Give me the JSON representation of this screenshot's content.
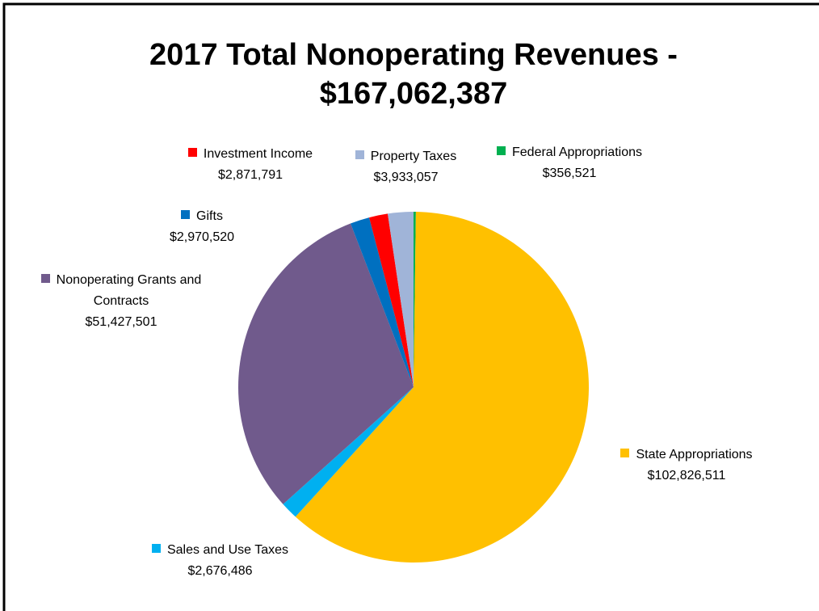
{
  "chart_data": {
    "type": "pie",
    "title": [
      "2017 Total Nonoperating Revenues -",
      "$167,062,387"
    ],
    "categories": [
      "Federal Appropriations",
      "State Appropriations",
      "Sales and Use Taxes",
      "Nonoperating Grants and Contracts",
      "Gifts",
      "Investment Income",
      "Property Taxes"
    ],
    "values": [
      356521,
      102826511,
      2676486,
      51427501,
      2970520,
      2871791,
      3933057
    ],
    "value_labels": [
      "$356,521",
      "$102,826,511",
      "$2,676,486",
      "$51,427,501",
      "$2,970,520",
      "$2,871,791",
      "$3,933,057"
    ],
    "colors": [
      "#00b050",
      "#ffc000",
      "#00b0f0",
      "#705a8c",
      "#0070c0",
      "#ff0000",
      "#a0b4d8"
    ]
  }
}
